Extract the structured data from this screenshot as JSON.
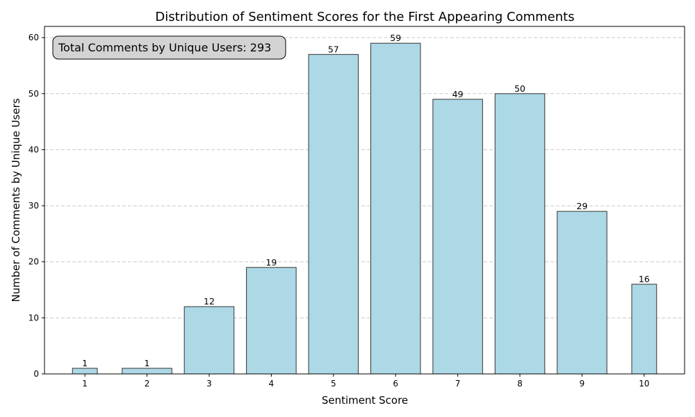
{
  "chart_data": {
    "type": "bar",
    "title": "Distribution of Sentiment Scores for the First Appearing Comments",
    "xlabel": "Sentiment Score",
    "ylabel": "Number of Comments by Unique Users",
    "categories": [
      1,
      2,
      3,
      4,
      5,
      6,
      7,
      8,
      9,
      10
    ],
    "values": [
      1,
      1,
      12,
      19,
      57,
      59,
      49,
      50,
      29,
      16
    ],
    "ylim": [
      0,
      62
    ],
    "yticks": [
      0,
      10,
      20,
      30,
      40,
      50,
      60
    ],
    "grid": "y-dashed",
    "bar_color": "#add8e6",
    "bar_edge_color": "#333333",
    "grid_color": "#c8c8c8",
    "annotation": {
      "text": "Total Comments by Unique Users: 293",
      "background": "#d3d3d3"
    }
  }
}
